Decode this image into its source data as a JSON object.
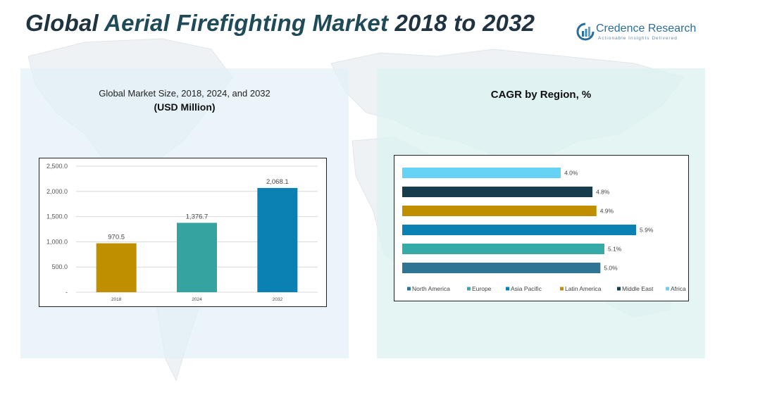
{
  "header": {
    "title_part1": "Global ",
    "title_part2": "Aerial Firefighting Market",
    "title_part3": " 2018 to 2032"
  },
  "logo": {
    "name": "Credence Research",
    "tagline": "Actionable Insights Delivered"
  },
  "left_panel": {
    "title_line1": "Global Market Size, 2018, 2024, and 2032",
    "title_line2": "(USD Million)"
  },
  "right_panel": {
    "title": "CAGR by Region, %"
  },
  "chart_data": [
    {
      "type": "bar",
      "categories": [
        "2018",
        "2024",
        "2032"
      ],
      "values": [
        970.5,
        1376.7,
        2068.1
      ],
      "value_labels": [
        "970.5",
        "1,376.7",
        "2,068.1"
      ],
      "colors": [
        "#bf8f00",
        "#35a3a0",
        "#0a80b3"
      ],
      "yticks": [
        "-",
        "500.0",
        "1,000.0",
        "1,500.0",
        "2,000.0",
        "2,500.0"
      ],
      "ylim": [
        0,
        2500
      ],
      "grid": true
    },
    {
      "type": "bar",
      "orientation": "horizontal",
      "categories": [
        "Africa",
        "Middle East",
        "Latin America",
        "Asia Pacific",
        "Europe",
        "North America"
      ],
      "values": [
        4.0,
        4.8,
        4.9,
        5.9,
        5.1,
        5.0
      ],
      "value_labels": [
        "4.0%",
        "4.8%",
        "4.9%",
        "5.9%",
        "5.1%",
        "5.0%"
      ],
      "colors": [
        "#66d2f5",
        "#173d4c",
        "#bf8f00",
        "#0a80b3",
        "#35aaa6",
        "#2e7594"
      ],
      "legend": [
        {
          "label": "North America",
          "color": "#2e7594"
        },
        {
          "label": "Europe",
          "color": "#35aaa6"
        },
        {
          "label": "Asia Pacific",
          "color": "#0a80b3"
        },
        {
          "label": "Latin America",
          "color": "#bf8f00"
        },
        {
          "label": "Middle East",
          "color": "#173d4c"
        },
        {
          "label": "Africa",
          "color": "#66d2f5"
        }
      ],
      "legend_position": "bottom",
      "xlim": [
        0,
        5.9
      ]
    }
  ]
}
